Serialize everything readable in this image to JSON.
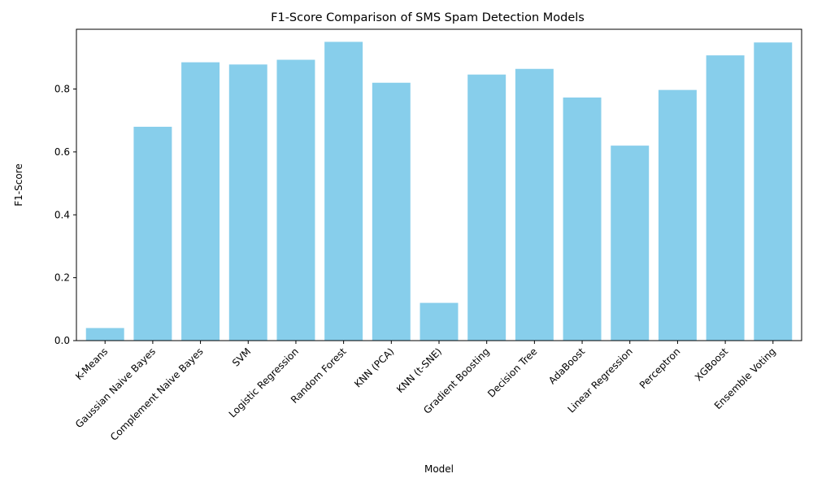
{
  "chart_data": {
    "type": "bar",
    "title": "F1-Score Comparison of SMS Spam Detection Models",
    "xlabel": "Model",
    "ylabel": "F1-Score",
    "categories": [
      "K-Means",
      "Gaussian Naive Bayes",
      "Complement Naive Bayes",
      "SVM",
      "Logistic Regression",
      "Random Forest",
      "KNN (PCA)",
      "KNN (t-SNE)",
      "Gradient Boosting",
      "Decision Tree",
      "AdaBoost",
      "Linear Regression",
      "Perceptron",
      "XGBoost",
      "Ensemble Voting"
    ],
    "values": [
      0.04,
      0.68,
      0.885,
      0.878,
      0.893,
      0.95,
      0.82,
      0.12,
      0.846,
      0.864,
      0.773,
      0.62,
      0.797,
      0.907,
      0.948
    ],
    "ylim": [
      0,
      0.99
    ],
    "yticks": [
      0.0,
      0.2,
      0.4,
      0.6,
      0.8
    ],
    "ytick_labels": [
      "0.0",
      "0.2",
      "0.4",
      "0.6",
      "0.8"
    ],
    "grid": false,
    "bar_color": "#87ceeb"
  }
}
